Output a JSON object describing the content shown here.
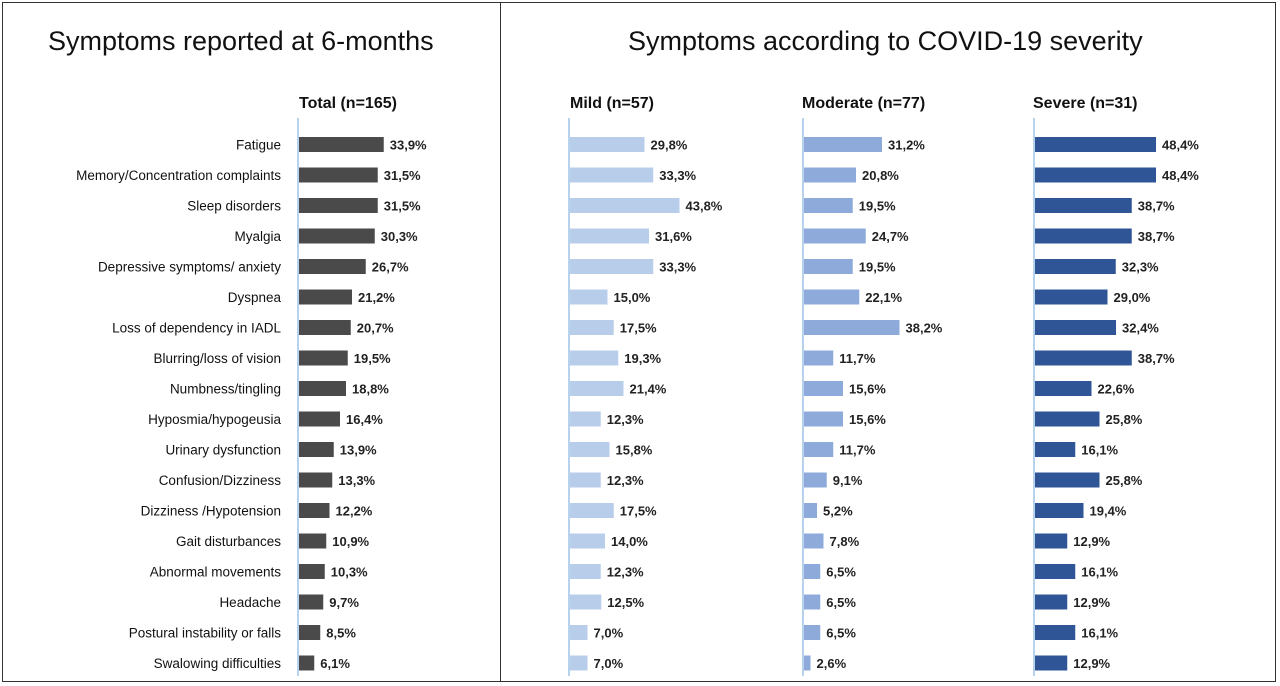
{
  "titles": {
    "left": "Symptoms reported at 6-months",
    "right": "Symptoms according to COVID-19 severity"
  },
  "colors": {
    "total": "#4a4a4a",
    "mild": "#b8cde9",
    "moderate": "#8eaadb",
    "severe": "#2f5597",
    "axis": "#9dc3e6"
  },
  "chart_data": {
    "type": "bar",
    "orientation": "horizontal",
    "categories": [
      "Fatigue",
      "Memory/Concentration complaints",
      "Sleep disorders",
      "Myalgia",
      "Depressive symptoms/ anxiety",
      "Dyspnea",
      "Loss of dependency in IADL",
      "Blurring/loss of vision",
      "Numbness/tingling",
      "Hyposmia/hypogeusia",
      "Urinary dysfunction",
      "Confusion/Dizziness",
      "Dizziness /Hypotension",
      "Gait disturbances",
      "Abnormal movements",
      "Headache",
      "Postural instability or falls",
      "Swalowing difficulties"
    ],
    "series": [
      {
        "name": "Total (n=165)",
        "values": [
          33.9,
          31.5,
          31.5,
          30.3,
          26.7,
          21.2,
          20.7,
          19.5,
          18.8,
          16.4,
          13.9,
          13.3,
          12.2,
          10.9,
          10.3,
          9.7,
          8.5,
          6.1
        ],
        "labels": [
          "33,9%",
          "31,5%",
          "31,5%",
          "30,3%",
          "26,7%",
          "21,2%",
          "20,7%",
          "19,5%",
          "18,8%",
          "16,4%",
          "13,9%",
          "13,3%",
          "12,2%",
          "10,9%",
          "10,3%",
          "9,7%",
          "8,5%",
          "6,1%"
        ]
      },
      {
        "name": "Mild (n=57)",
        "values": [
          29.8,
          33.3,
          43.8,
          31.6,
          33.3,
          15.0,
          17.5,
          19.3,
          21.4,
          12.3,
          15.8,
          12.3,
          17.5,
          14.0,
          12.3,
          12.5,
          7.0,
          7.0
        ],
        "labels": [
          "29,8%",
          "33,3%",
          "43,8%",
          "31,6%",
          "33,3%",
          "15,0%",
          "17,5%",
          "19,3%",
          "21,4%",
          "12,3%",
          "15,8%",
          "12,3%",
          "17,5%",
          "14,0%",
          "12,3%",
          "12,5%",
          "7,0%",
          "7,0%"
        ]
      },
      {
        "name": "Moderate (n=77)",
        "values": [
          31.2,
          20.8,
          19.5,
          24.7,
          19.5,
          22.1,
          38.2,
          11.7,
          15.6,
          15.6,
          11.7,
          9.1,
          5.2,
          7.8,
          6.5,
          6.5,
          6.5,
          2.6
        ],
        "labels": [
          "31,2%",
          "20,8%",
          "19,5%",
          "24,7%",
          "19,5%",
          "22,1%",
          "38,2%",
          "11,7%",
          "15,6%",
          "15,6%",
          "11,7%",
          "9,1%",
          "5,2%",
          "7,8%",
          "6,5%",
          "6,5%",
          "6,5%",
          "2,6%"
        ]
      },
      {
        "name": "Severe (n=31)",
        "values": [
          48.4,
          48.4,
          38.7,
          38.7,
          32.3,
          29.0,
          32.4,
          38.7,
          22.6,
          25.8,
          16.1,
          25.8,
          19.4,
          12.9,
          16.1,
          12.9,
          16.1,
          12.9
        ],
        "labels": [
          "48,4%",
          "48,4%",
          "38,7%",
          "38,7%",
          "32,3%",
          "29,0%",
          "32,4%",
          "38,7%",
          "22,6%",
          "25,8%",
          "16,1%",
          "25,8%",
          "19,4%",
          "12,9%",
          "16,1%",
          "12,9%",
          "16,1%",
          "12,9%"
        ]
      }
    ],
    "legend": "none",
    "grid": false
  }
}
